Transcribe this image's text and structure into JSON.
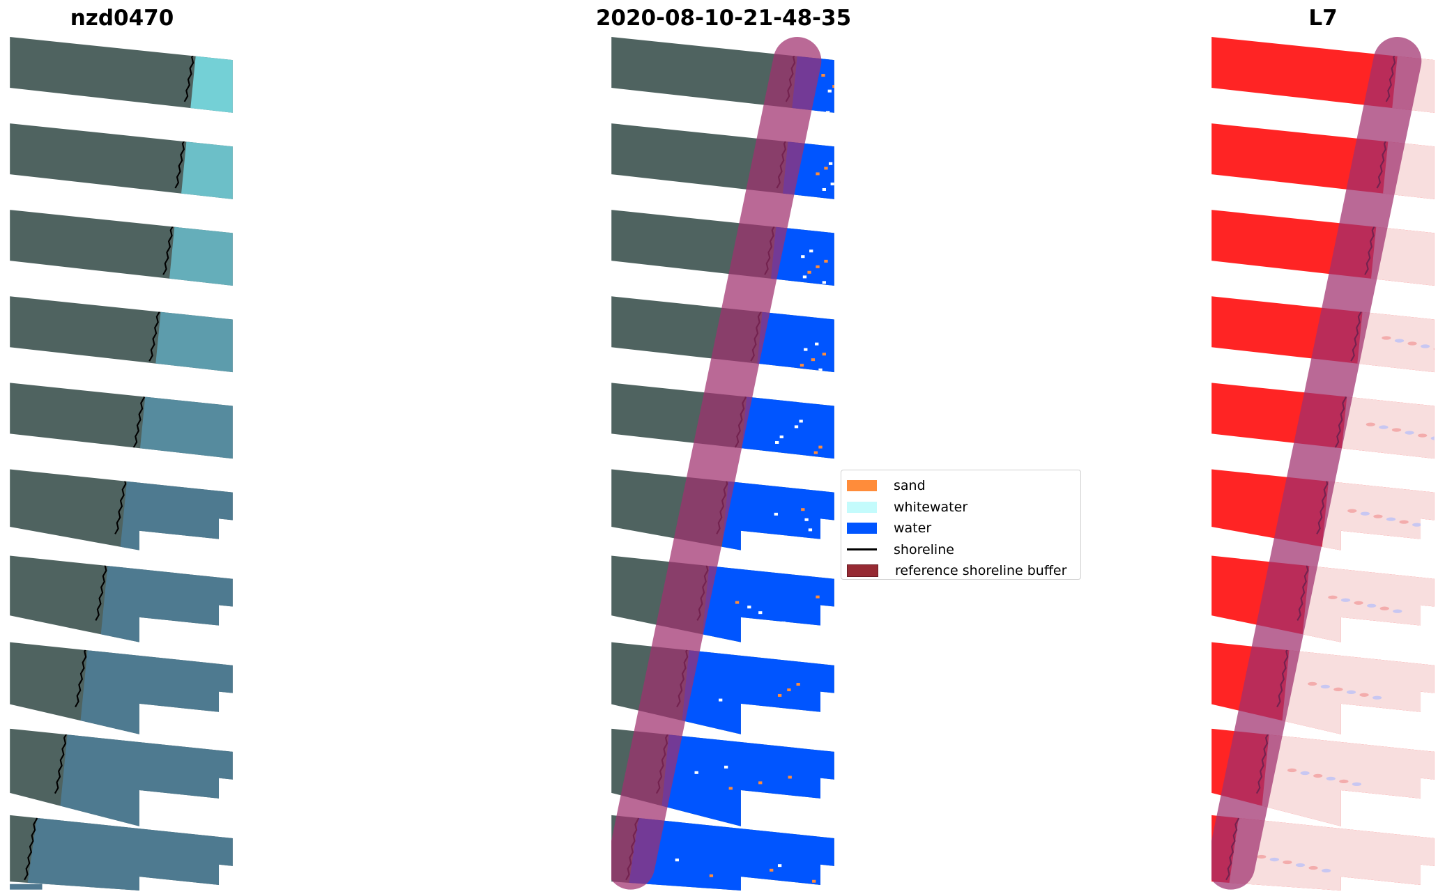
{
  "titles": {
    "left": "nzd0470",
    "center": "2020-08-10-21-48-35",
    "right": "L7"
  },
  "legend": {
    "items": [
      {
        "label": "sand",
        "color": "#ff8c3a",
        "kind": "patch"
      },
      {
        "label": "whitewater",
        "color": "#c4fbfc",
        "kind": "patch"
      },
      {
        "label": "water",
        "color": "#0055ff",
        "kind": "patch"
      },
      {
        "label": "shoreline",
        "color": "#000000",
        "kind": "line"
      },
      {
        "label": "reference shoreline buffer",
        "color": "#962a33",
        "kind": "patch"
      }
    ]
  },
  "chart_data": {
    "type": "image-panels",
    "panels": [
      {
        "title": "nzd0470",
        "content": "RGB satellite image with detected shoreline"
      },
      {
        "title": "2020-08-10-21-48-35",
        "content": "classified image with reference shoreline buffer"
      },
      {
        "title": "L7",
        "content": "water index image with reference shoreline buffer"
      }
    ],
    "colors": {
      "land_rgb": "#4f6360",
      "water_rgb_top": "#74d0d6",
      "water_rgb_bottom": "#4e7a90",
      "water_class": "#0055ff",
      "sand": "#ff8c3a",
      "land_index": "#ff2424",
      "water_index": "#f8dede",
      "buffer": "#a0306e"
    }
  }
}
